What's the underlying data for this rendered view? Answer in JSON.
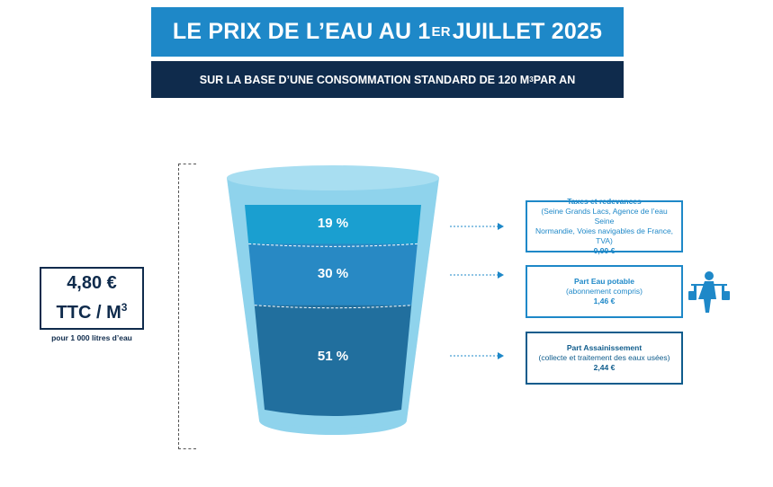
{
  "header": {
    "title_main": "LE PRIX DE L’EAU AU 1",
    "title_sup": "ER",
    "title_end": " JUILLET 2025",
    "subtitle_main": "SUR LA BASE D’UNE CONSOMMATION STANDARD DE 120 M",
    "subtitle_sup": "3",
    "subtitle_end": " PAR AN"
  },
  "price": {
    "amount": "4,80 €",
    "unit_main": "TTC / M",
    "unit_sup": "3",
    "note": "pour 1 000 litres d’eau"
  },
  "chart_data": {
    "type": "stacked-glass",
    "categories": [
      "Taxes et redevances",
      "Part Eau potable",
      "Part Assainissement"
    ],
    "values": [
      19,
      30,
      51
    ],
    "labels": [
      "19 %",
      "30 %",
      "51 %"
    ],
    "amounts": [
      "0,90 €",
      "1,46 €",
      "2,44 €"
    ]
  },
  "boxes": [
    {
      "head": "Taxes et redevances",
      "detail_1": "(Seine Grands Lacs, Agence de l’eau Seine",
      "detail_2": "Normandie, Voies navigables de France, TVA)",
      "value": "0,90 €"
    },
    {
      "head": "Part Eau potable",
      "detail_1": "(abonnement compris)",
      "value": "1,46 €"
    },
    {
      "head": "Part Assainissement",
      "detail_1": "(collecte et traitement des eaux usées)",
      "value": "2,44 €"
    }
  ],
  "colors": {
    "title_bg": "#1e88c8",
    "subtitle_bg": "#0f2b4c",
    "glass": "#8fd3ec",
    "segment_top": "#1a9fd0",
    "segment_mid": "#2889c4",
    "segment_bottom": "#216f9e"
  },
  "icons": {
    "water_carrier": "water-carrier-icon"
  }
}
